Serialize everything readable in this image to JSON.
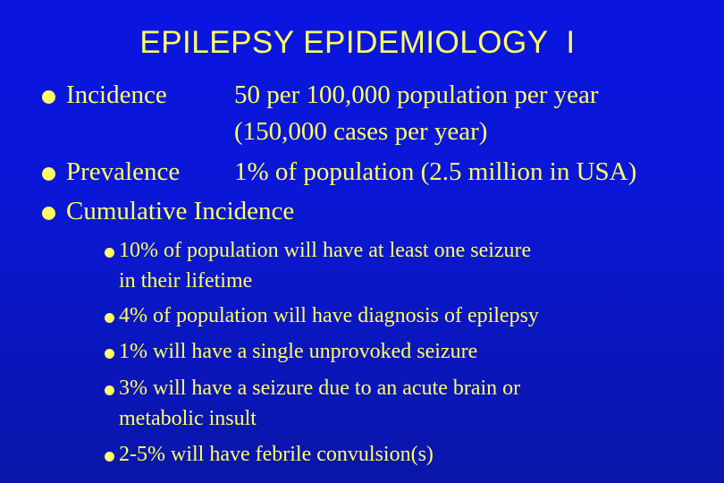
{
  "slide": {
    "title": "EPILEPSY EPIDEMIOLOGY  I",
    "main_items": [
      {
        "label": "Incidence",
        "value_line1": "50 per 100,000 population per year",
        "value_line2": "(150,000 cases per year)"
      },
      {
        "label": "Prevalence",
        "value_line1": "1% of population (2.5 million in USA)"
      },
      {
        "label": "Cumulative Incidence"
      }
    ],
    "sub_items": [
      {
        "line1": "10% of population will have at least one seizure",
        "line2": "in their lifetime"
      },
      {
        "line1": "4% of population will have diagnosis of epilepsy"
      },
      {
        "line1": "1% will have a single unprovoked seizure"
      },
      {
        "line1": "3% will have a seizure due to an acute brain or",
        "line2": "metabolic insult"
      },
      {
        "line1": "2-5% will have febrile convulsion(s)"
      }
    ],
    "colors": {
      "background": "#0a16d0",
      "text": "#ffff66"
    }
  }
}
